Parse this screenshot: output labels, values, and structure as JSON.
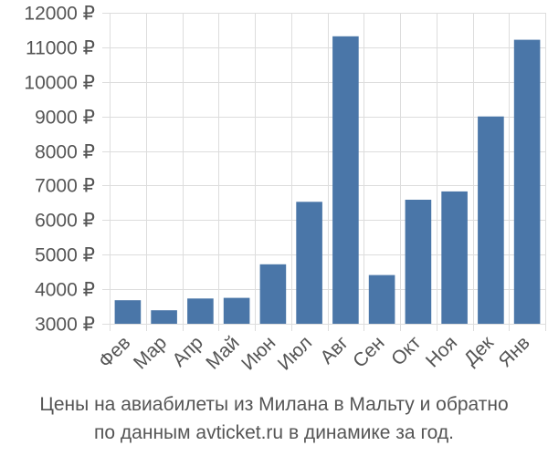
{
  "chart_data": {
    "type": "bar",
    "categories": [
      "Фев",
      "Мар",
      "Апр",
      "Май",
      "Июн",
      "Июл",
      "Авг",
      "Сен",
      "Окт",
      "Ноя",
      "Дек",
      "Янв"
    ],
    "values": [
      3680,
      3390,
      3730,
      3750,
      4720,
      6530,
      11320,
      4410,
      6590,
      6830,
      9000,
      11220
    ],
    "y_ticks": [
      "3000 ₽",
      "4000 ₽",
      "5000 ₽",
      "6000 ₽",
      "7000 ₽",
      "8000 ₽",
      "9000 ₽",
      "10000 ₽",
      "11000 ₽",
      "12000 ₽"
    ],
    "ylim": [
      3000,
      12000
    ],
    "grid": true,
    "bar_color": "#4a76a8",
    "caption_line1": "Цены на авиабилеты из Милана в Мальту и обратно",
    "caption_line2": "по данным avticket.ru в динамике за год."
  }
}
